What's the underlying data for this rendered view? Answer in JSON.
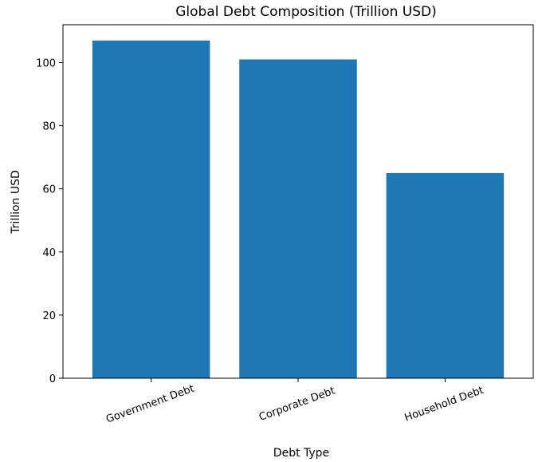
{
  "chart_data": {
    "type": "bar",
    "title": "Global Debt Composition (Trillion USD)",
    "xlabel": "Debt Type",
    "ylabel": "Trillion USD",
    "categories": [
      "Government Debt",
      "Corporate Debt",
      "Household Debt"
    ],
    "values": [
      107,
      101,
      65
    ],
    "ylim": [
      0,
      112
    ],
    "yticks": [
      0,
      20,
      40,
      60,
      80,
      100
    ],
    "xtick_rotation": 20,
    "grid": false,
    "bar_color": "#1f77b4"
  }
}
